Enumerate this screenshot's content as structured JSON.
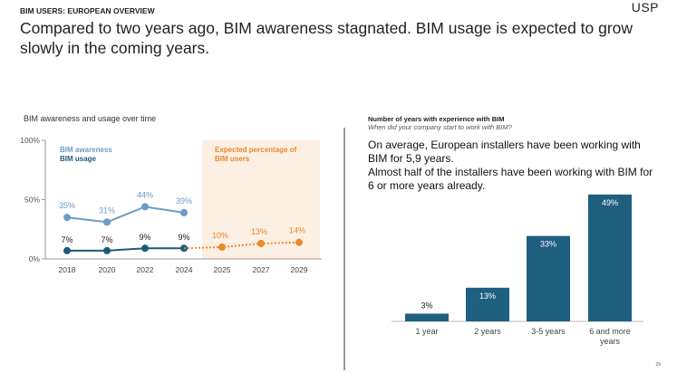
{
  "header": {
    "eyebrow": "BIM USERS: EUROPEAN OVERVIEW",
    "logo": "USP",
    "headline": "Compared to two years ago, BIM awareness stagnated. BIM usage is expected to grow slowly in the coming years."
  },
  "left_chart": {
    "title": "BIM awareness and usage over time",
    "legend_awareness": "BIM awareness",
    "legend_usage": "BIM usage",
    "expected_label": "Expected percentage of BIM users"
  },
  "right_panel": {
    "title": "Number of years with experience with BIM",
    "subtitle": "When did your company start to work with BIM?",
    "body_1": "On average, European installers have been working with BIM for 5,9 years.",
    "body_2": "Almost half of the installers have been working with BIM for 6 or more years already."
  },
  "page_number": "29",
  "colors": {
    "awareness": "#6b9cc6",
    "usage": "#1d5a7a",
    "expected": "#e8892b",
    "expected_bg": "#fcefe3",
    "bar": "#1f5f80"
  },
  "chart_data": [
    {
      "type": "line",
      "title": "BIM awareness and usage over time",
      "x": [
        "2018",
        "2020",
        "2022",
        "2024",
        "2025",
        "2027",
        "2029"
      ],
      "yticks": [
        "0%",
        "50%",
        "100%"
      ],
      "ylim": [
        0,
        100
      ],
      "series": [
        {
          "name": "BIM awareness",
          "x": [
            "2018",
            "2020",
            "2022",
            "2024"
          ],
          "values": [
            35,
            31,
            44,
            39
          ],
          "labels": [
            "35%",
            "31%",
            "44%",
            "39%"
          ]
        },
        {
          "name": "BIM usage",
          "x": [
            "2018",
            "2020",
            "2022",
            "2024"
          ],
          "values": [
            7,
            7,
            9,
            9
          ],
          "labels": [
            "7%",
            "7%",
            "9%",
            "9%"
          ]
        },
        {
          "name": "Expected percentage of BIM users",
          "x": [
            "2025",
            "2027",
            "2029"
          ],
          "values": [
            10,
            13,
            14
          ],
          "labels": [
            "10%",
            "13%",
            "14%"
          ]
        }
      ],
      "grid": false
    },
    {
      "type": "bar",
      "title": "Number of years with experience with BIM",
      "categories": [
        [
          "1 year"
        ],
        [
          "2 years"
        ],
        [
          "3-5 years"
        ],
        [
          "6 and more",
          "years"
        ]
      ],
      "values": [
        3,
        13,
        33,
        49
      ],
      "labels": [
        "3%",
        "13%",
        "33%",
        "49%"
      ]
    }
  ]
}
